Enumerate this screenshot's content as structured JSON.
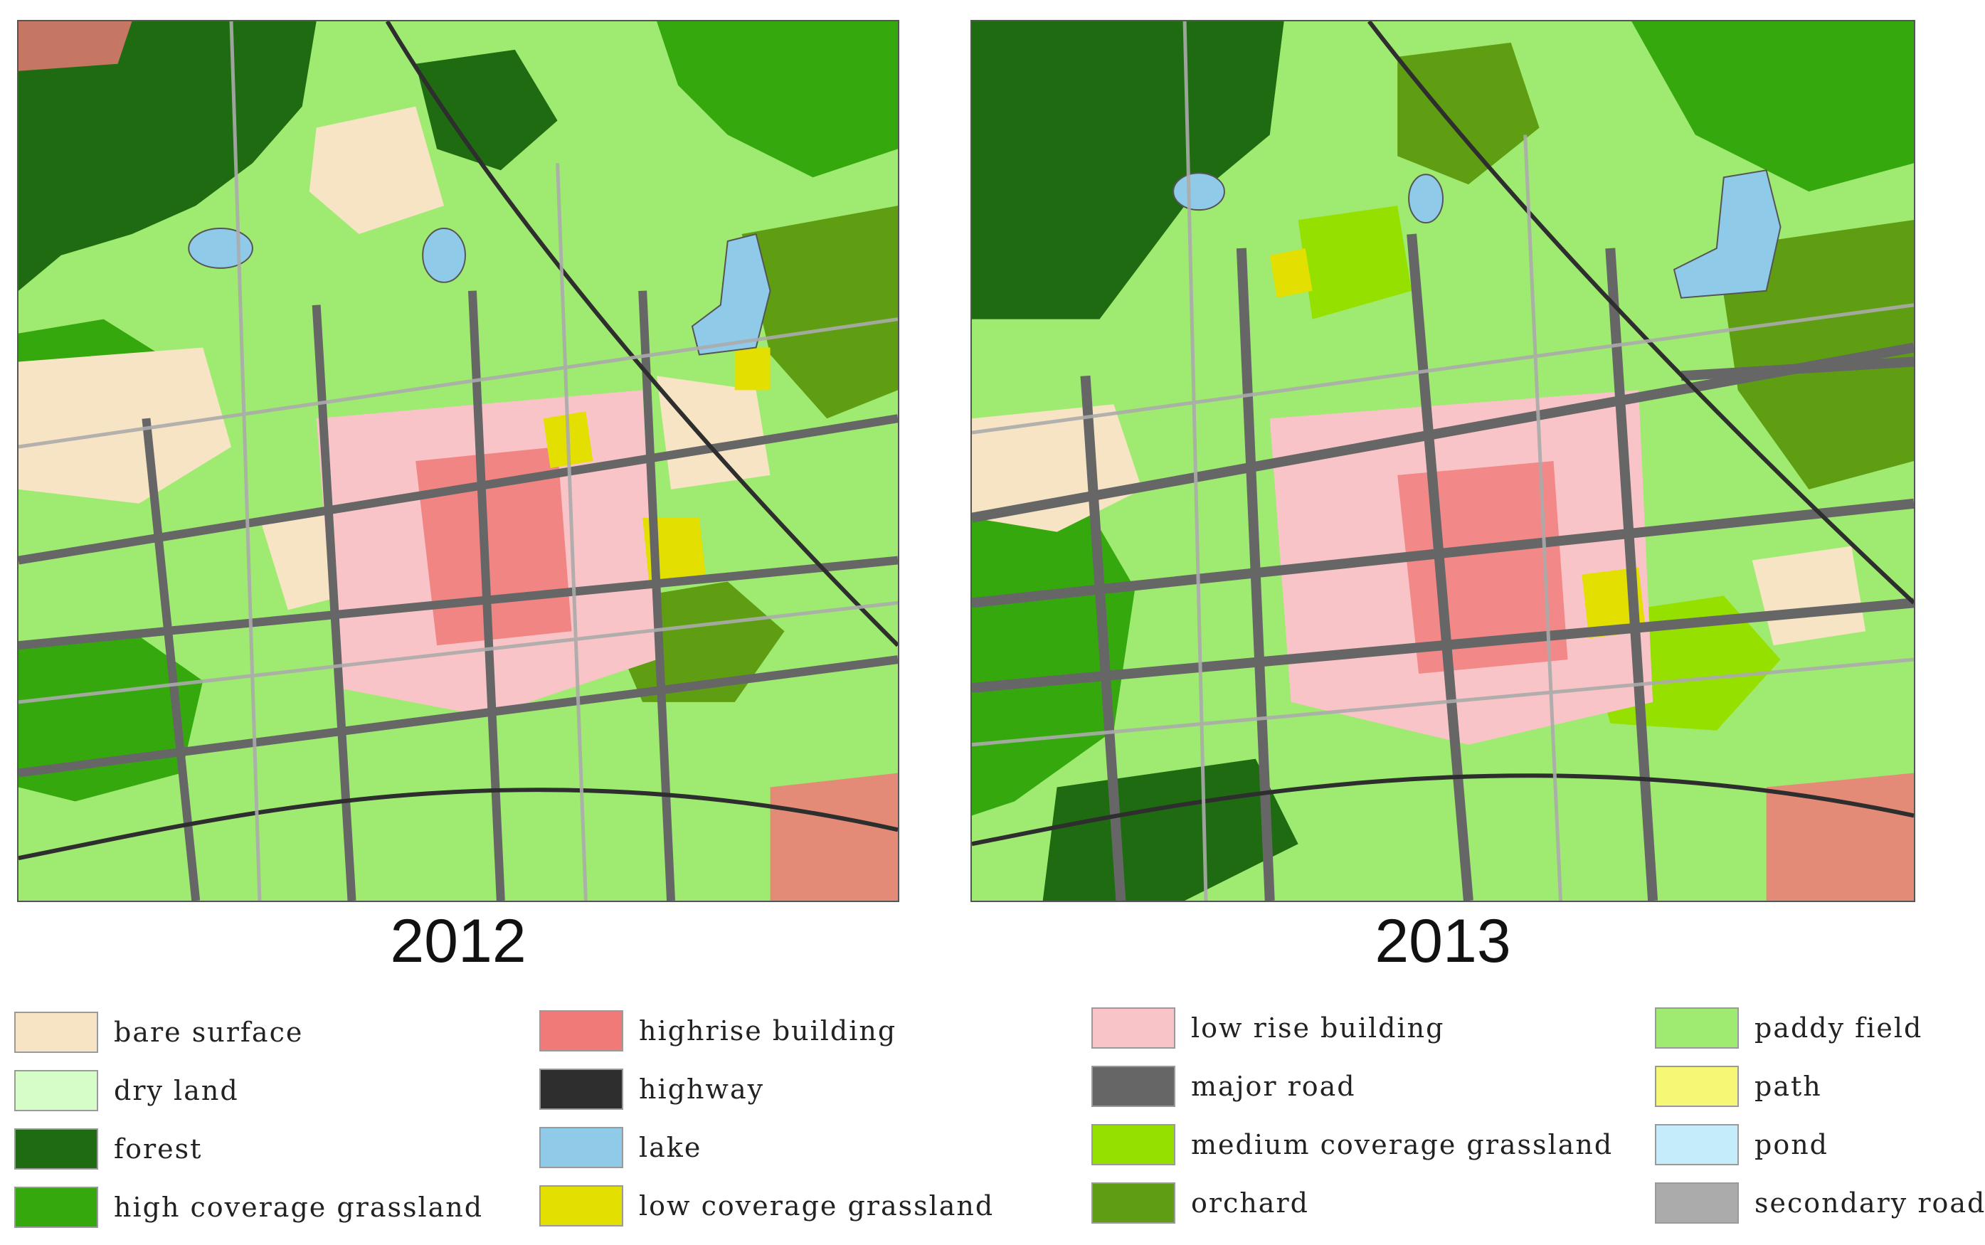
{
  "panels": [
    {
      "year": "2012"
    },
    {
      "year": "2013"
    }
  ],
  "legend": [
    {
      "label": "bare surface",
      "color": "#f6e4c4",
      "icon": "bare-surface-swatch"
    },
    {
      "label": "dry land",
      "color": "#d6fcc8",
      "icon": "dry-land-swatch"
    },
    {
      "label": "forest",
      "color": "#1f6b12",
      "icon": "forest-swatch"
    },
    {
      "label": "high coverage grassland",
      "color": "#35a80e",
      "icon": "high-coverage-grassland-swatch"
    },
    {
      "label": "highrise building",
      "color": "#f07a78",
      "icon": "highrise-building-swatch"
    },
    {
      "label": "highway",
      "color": "#2e2e2e",
      "icon": "highway-swatch"
    },
    {
      "label": "lake",
      "color": "#8fcbe8",
      "icon": "lake-swatch"
    },
    {
      "label": "low coverage grassland",
      "color": "#e3df00",
      "icon": "low-coverage-grassland-swatch"
    },
    {
      "label": "low rise building",
      "color": "#f9c4c8",
      "icon": "low-rise-building-swatch"
    },
    {
      "label": "major road",
      "color": "#666666",
      "icon": "major-road-swatch"
    },
    {
      "label": "medium coverage grassland",
      "color": "#96e000",
      "icon": "medium-coverage-grassland-swatch"
    },
    {
      "label": "orchard",
      "color": "#5f9e12",
      "icon": "orchard-swatch"
    },
    {
      "label": "paddy field",
      "color": "#9fea70",
      "icon": "paddy-field-swatch"
    },
    {
      "label": "path",
      "color": "#f7f776",
      "icon": "path-swatch"
    },
    {
      "label": "pond",
      "color": "#c4ecfb",
      "icon": "pond-swatch"
    },
    {
      "label": "secondary road",
      "color": "#ababab",
      "icon": "secondary-road-swatch"
    }
  ]
}
